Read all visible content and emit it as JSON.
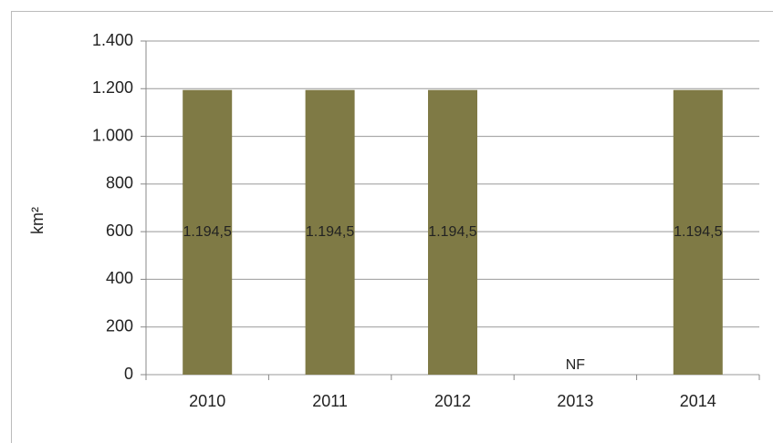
{
  "chart_data": {
    "type": "bar",
    "y_label": "km²",
    "categories": [
      "2010",
      "2011",
      "2012",
      "2013",
      "2014"
    ],
    "values": [
      1194.5,
      1194.5,
      1194.5,
      null,
      1194.5
    ],
    "value_labels": [
      "1.194,5",
      "1.194,5",
      "1.194,5",
      "NF",
      "1.194,5"
    ],
    "color": "#7f7a45",
    "ylim": [
      0,
      1400
    ],
    "yticks": [
      0,
      200,
      400,
      600,
      800,
      {
        "value": 1000,
        "label": "1.000"
      },
      {
        "value": 1200,
        "label": "1.200"
      },
      {
        "value": 1400,
        "label": "1.400"
      }
    ],
    "grid": true
  }
}
